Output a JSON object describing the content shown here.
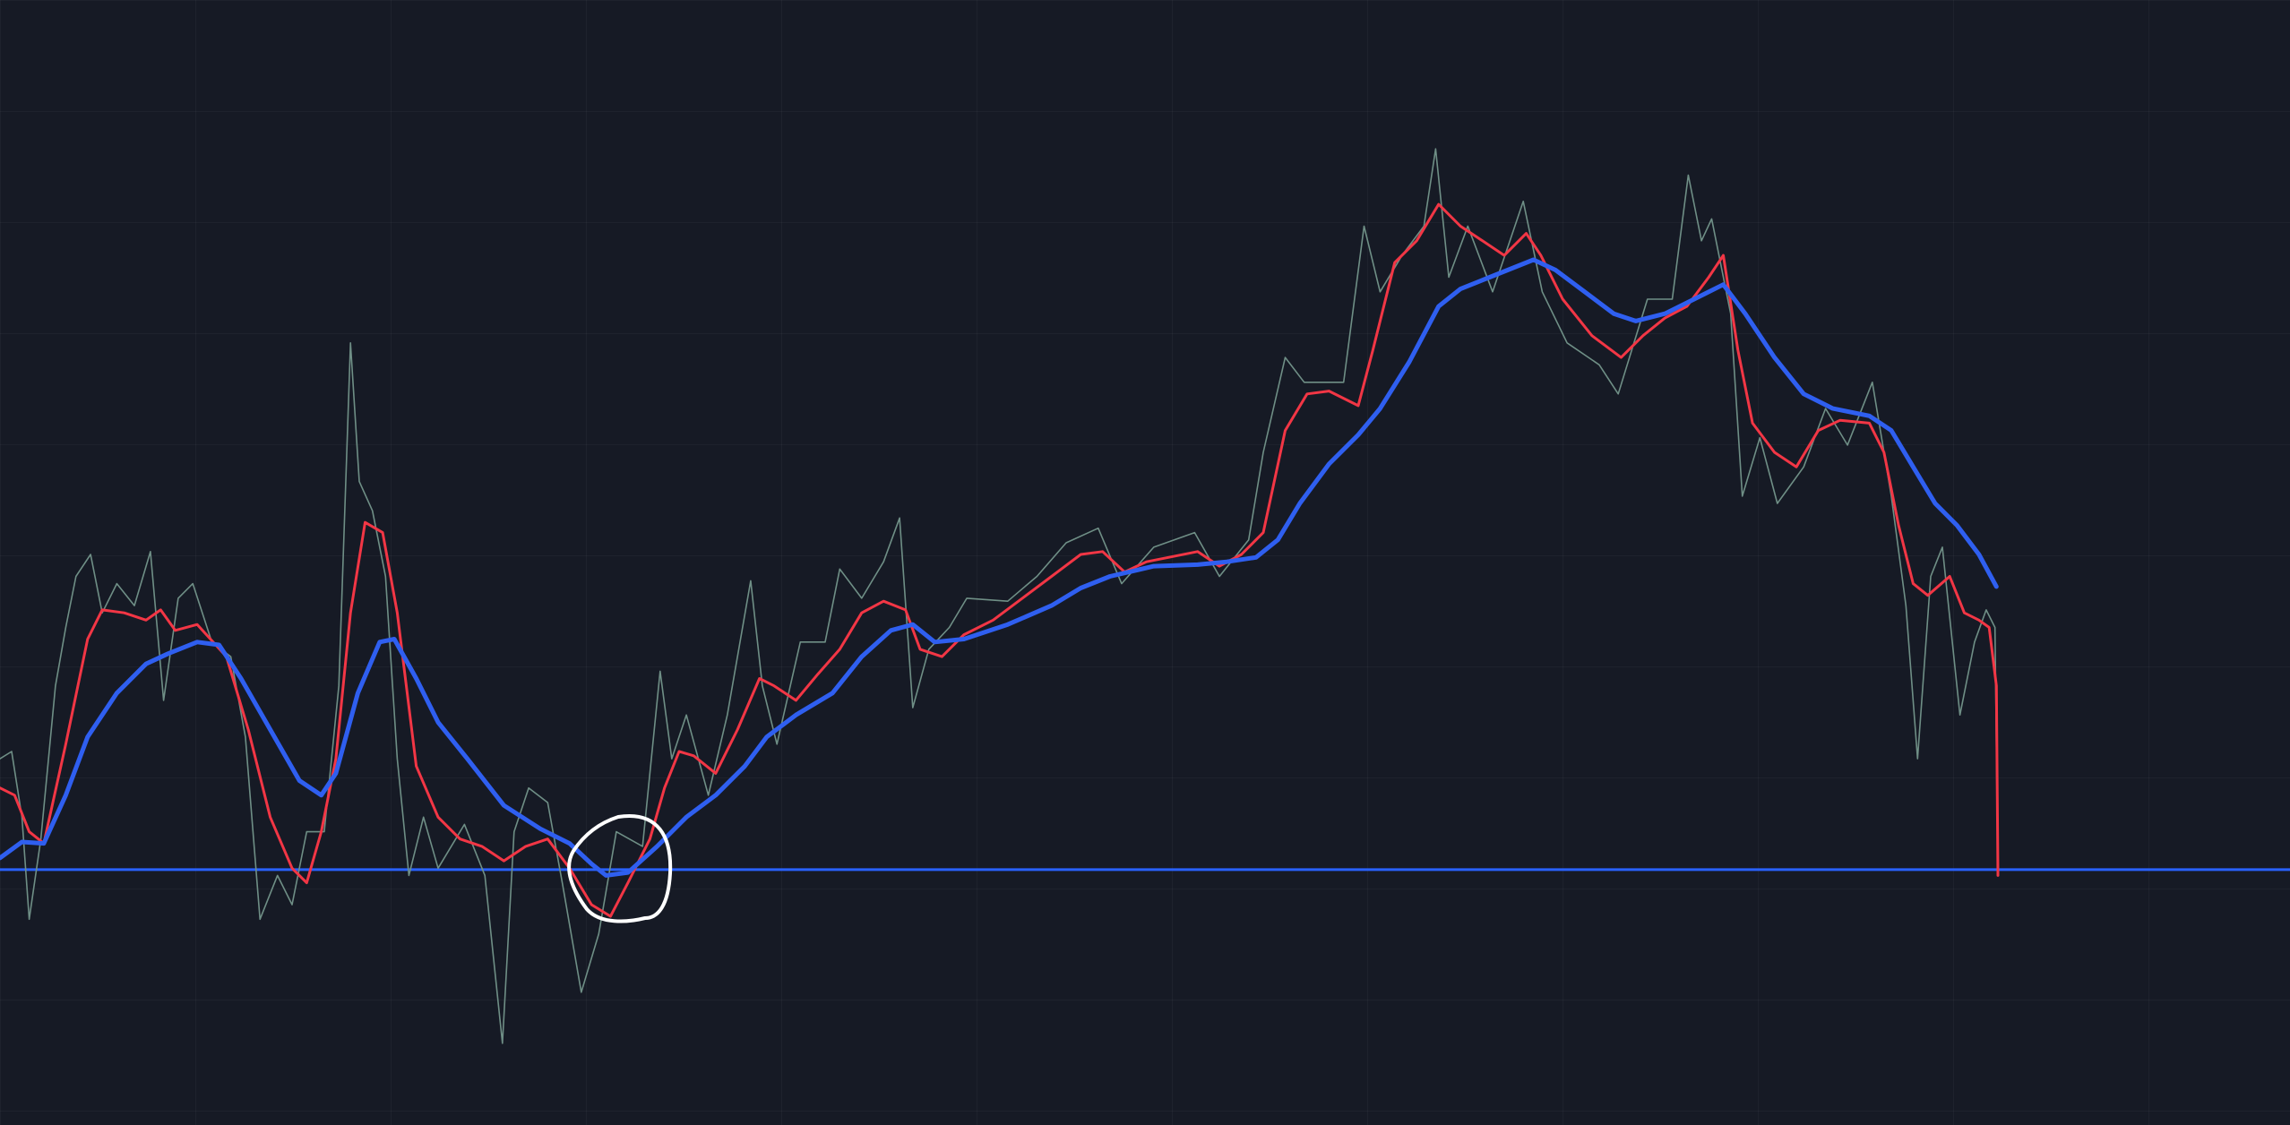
{
  "chart_data": {
    "type": "line",
    "xlim": [
      0,
      1568
    ],
    "ylim": [
      0,
      771
    ],
    "horizontal_line": {
      "value": 175,
      "color": "#2962ff"
    },
    "series": [
      {
        "color": "#6f8f86",
        "x": [
          0,
          8,
          15,
          20,
          28,
          38,
          45,
          52,
          62,
          70,
          80,
          92,
          103,
          112,
          122,
          132,
          145,
          158,
          168,
          178,
          190,
          200,
          210,
          222,
          232,
          240,
          246,
          255,
          264,
          272,
          280,
          290,
          300,
          318,
          332,
          344,
          352,
          362,
          375,
          385,
          398,
          410,
          422,
          440,
          452,
          460,
          470,
          485,
          498,
          514,
          522,
          532,
          548,
          565,
          575,
          590,
          605,
          616,
          625,
          636,
          650,
          662,
          690,
          710,
          730,
          752,
          768,
          790,
          818,
          835,
          855,
          865,
          880,
          893,
          920,
          934,
          945,
          960,
          975,
          983,
          992,
          1005,
          1022,
          1043,
          1056,
          1073,
          1095,
          1108,
          1128,
          1145,
          1156,
          1165,
          1172,
          1185,
          1193,
          1205,
          1217,
          1235,
          1250,
          1265,
          1282,
          1295,
          1305,
          1313,
          1322,
          1330,
          1342,
          1352,
          1360,
          1366,
          1368
        ],
        "values": [
          251,
          256,
          211,
          141,
          196,
          301,
          341,
          376,
          391,
          351,
          371,
          356,
          393,
          291,
          361,
          371,
          331,
          321,
          266,
          141,
          171,
          151,
          201,
          201,
          301,
          536,
          441,
          421,
          376,
          251,
          171,
          211,
          176,
          206,
          171,
          56,
          201,
          231,
          221,
          166,
          91,
          131,
          201,
          191,
          311,
          251,
          281,
          226,
          281,
          373,
          301,
          261,
          331,
          331,
          381,
          361,
          386,
          416,
          286,
          326,
          341,
          361,
          359,
          376,
          399,
          409,
          371,
          396,
          406,
          376,
          401,
          461,
          526,
          509,
          509,
          616,
          571,
          596,
          616,
          669,
          581,
          616,
          571,
          633,
          571,
          536,
          521,
          501,
          566,
          566,
          651,
          606,
          621,
          556,
          431,
          471,
          426,
          451,
          491,
          466,
          509,
          431,
          356,
          251,
          376,
          396,
          281,
          331,
          353,
          341,
          171
        ]
      },
      {
        "color": "#f23645",
        "x": [
          0,
          10,
          20,
          30,
          45,
          60,
          70,
          85,
          100,
          110,
          120,
          135,
          155,
          170,
          185,
          200,
          210,
          220,
          230,
          240,
          250,
          262,
          272,
          285,
          300,
          315,
          330,
          345,
          360,
          375,
          390,
          405,
          418,
          430,
          445,
          455,
          465,
          475,
          490,
          505,
          520,
          530,
          545,
          560,
          575,
          590,
          605,
          620,
          630,
          645,
          660,
          680,
          700,
          720,
          740,
          755,
          770,
          785,
          800,
          820,
          835,
          850,
          865,
          880,
          895,
          910,
          930,
          940,
          955,
          970,
          985,
          1000,
          1015,
          1030,
          1045,
          1055,
          1070,
          1090,
          1110,
          1125,
          1140,
          1155,
          1170,
          1180,
          1190,
          1200,
          1215,
          1230,
          1245,
          1260,
          1280,
          1290,
          1300,
          1310,
          1320,
          1335,
          1345,
          1355,
          1362,
          1367,
          1368
        ],
        "values": [
          231,
          226,
          201,
          193,
          261,
          333,
          353,
          351,
          346,
          353,
          339,
          343,
          321,
          271,
          211,
          176,
          166,
          201,
          251,
          351,
          413,
          406,
          351,
          246,
          211,
          196,
          191,
          181,
          191,
          196,
          176,
          151,
          143,
          166,
          196,
          231,
          256,
          253,
          241,
          271,
          306,
          301,
          291,
          309,
          326,
          351,
          359,
          353,
          326,
          321,
          336,
          346,
          361,
          376,
          391,
          393,
          379,
          386,
          389,
          393,
          383,
          391,
          406,
          476,
          501,
          503,
          493,
          531,
          591,
          606,
          631,
          616,
          606,
          596,
          611,
          596,
          566,
          541,
          526,
          541,
          553,
          561,
          581,
          596,
          531,
          481,
          461,
          451,
          476,
          483,
          481,
          461,
          411,
          371,
          363,
          376,
          351,
          346,
          341,
          301,
          171
        ]
      },
      {
        "color": "#2f5ff0",
        "x": [
          0,
          15,
          30,
          45,
          60,
          80,
          100,
          115,
          135,
          150,
          165,
          185,
          205,
          220,
          230,
          245,
          260,
          270,
          285,
          300,
          320,
          345,
          370,
          390,
          405,
          415,
          430,
          450,
          470,
          490,
          510,
          525,
          545,
          570,
          590,
          610,
          625,
          640,
          660,
          690,
          720,
          740,
          760,
          790,
          820,
          840,
          860,
          875,
          890,
          910,
          930,
          945,
          965,
          985,
          1000,
          1020,
          1040,
          1050,
          1065,
          1085,
          1105,
          1120,
          1140,
          1160,
          1180,
          1195,
          1215,
          1235,
          1255,
          1280,
          1295,
          1310,
          1325,
          1340,
          1355,
          1367
        ],
        "values": [
          183,
          194,
          193,
          226,
          266,
          296,
          316,
          323,
          331,
          329,
          306,
          271,
          236,
          226,
          241,
          296,
          331,
          333,
          306,
          276,
          251,
          219,
          203,
          193,
          179,
          171,
          173,
          191,
          211,
          226,
          246,
          266,
          281,
          296,
          321,
          339,
          343,
          331,
          333,
          343,
          356,
          368,
          376,
          383,
          384,
          386,
          389,
          401,
          426,
          453,
          473,
          491,
          523,
          561,
          573,
          581,
          589,
          593,
          586,
          571,
          556,
          551,
          556,
          566,
          576,
          556,
          526,
          501,
          491,
          486,
          476,
          451,
          426,
          411,
          391,
          369
        ]
      }
    ]
  }
}
